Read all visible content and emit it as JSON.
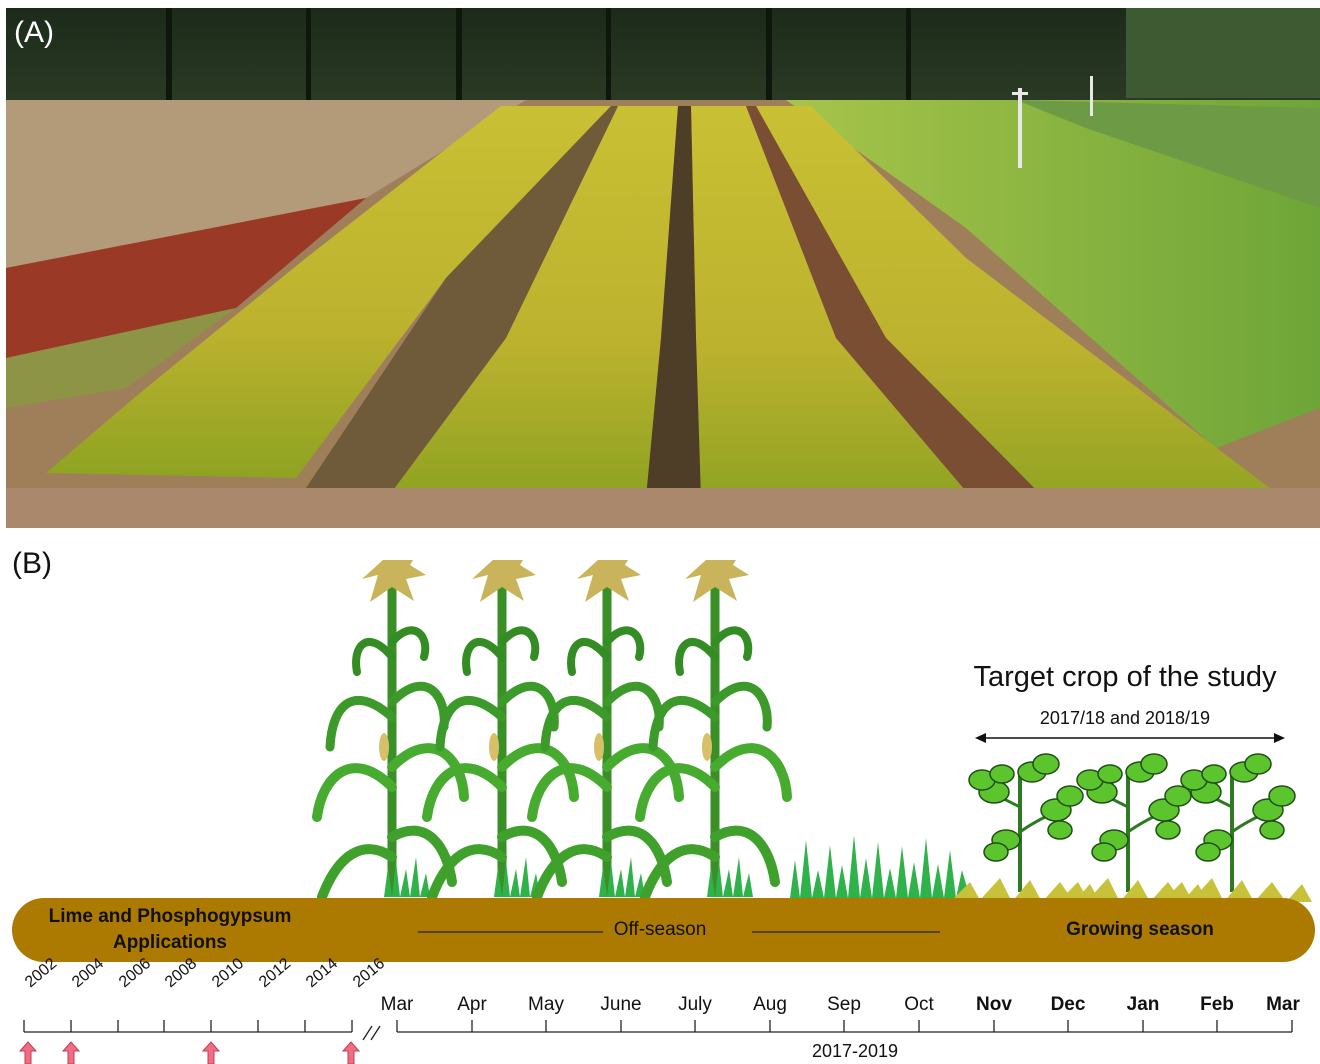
{
  "panels": {
    "a_label": "(A)",
    "b_label": "(B)"
  },
  "bar": {
    "left_text_line1": "Lime and Phosphogypsum",
    "left_text_line2": "Applications",
    "middle_text": "Off-season",
    "right_text": "Growing season",
    "color": "#AC7A00"
  },
  "target": {
    "title": "Target crop of the study",
    "years": "2017/18 and 2018/19"
  },
  "years": [
    "2002",
    "2004",
    "2006",
    "2008",
    "2010",
    "2012",
    "2014",
    "2016"
  ],
  "application_years": [
    "2002",
    "2004",
    "2010",
    "2016"
  ],
  "months": [
    {
      "label": "Mar",
      "bold": false
    },
    {
      "label": "Apr",
      "bold": false
    },
    {
      "label": "May",
      "bold": false
    },
    {
      "label": "June",
      "bold": false
    },
    {
      "label": "July",
      "bold": false
    },
    {
      "label": "Aug",
      "bold": false
    },
    {
      "label": "Sep",
      "bold": false
    },
    {
      "label": "Oct",
      "bold": false
    },
    {
      "label": "Nov",
      "bold": true
    },
    {
      "label": "Dec",
      "bold": true
    },
    {
      "label": "Jan",
      "bold": true
    },
    {
      "label": "Feb",
      "bold": true
    },
    {
      "label": "Mar",
      "bold": true
    }
  ],
  "period_label": "2017-2019",
  "colors": {
    "arrow": "#F26D84",
    "corn_leaf": "#3E9A2A",
    "corn_tassel": "#C9B45C",
    "grass": "#2FB24A",
    "soy_leaf": "#5CC52E",
    "straw": "#C8C23A"
  }
}
